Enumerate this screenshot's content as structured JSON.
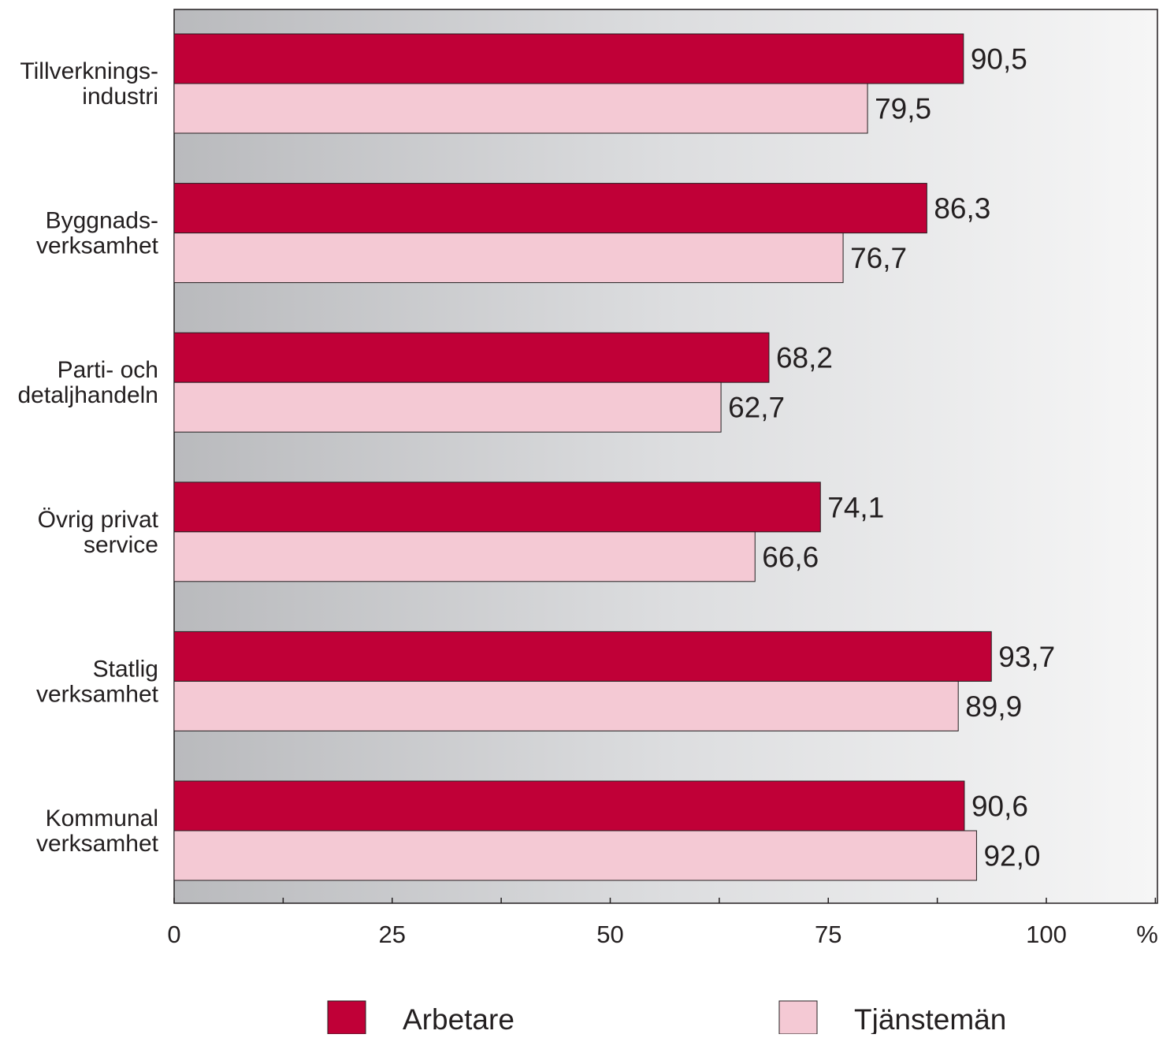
{
  "chart_data": {
    "type": "bar",
    "orientation": "horizontal",
    "title": "",
    "xlabel": "",
    "ylabel": "",
    "x_unit": "%",
    "xlim": [
      0,
      112
    ],
    "x_ticks": [
      0,
      25,
      50,
      75,
      100
    ],
    "x_tick_labels": [
      "0",
      "25",
      "50",
      "75",
      "100"
    ],
    "grid": false,
    "legend_position": "bottom",
    "categories": [
      [
        "Tillverknings-",
        "industri"
      ],
      [
        "Byggnads-",
        "verksamhet"
      ],
      [
        "Parti- och",
        "detaljhandeln"
      ],
      [
        "Övrig privat",
        "service"
      ],
      [
        "Statlig",
        "verksamhet"
      ],
      [
        "Kommunal",
        "verksamhet"
      ]
    ],
    "series": [
      {
        "name": "Arbetare",
        "color": "#c00037",
        "values": [
          90.5,
          86.3,
          68.2,
          74.1,
          93.7,
          90.6
        ],
        "labels": [
          "90,5",
          "86,3",
          "68,2",
          "74,1",
          "93,7",
          "90,6"
        ]
      },
      {
        "name": "Tjänstemän",
        "color": "#f4c9d4",
        "values": [
          79.5,
          76.7,
          62.7,
          66.6,
          89.9,
          92.0
        ],
        "labels": [
          "79,5",
          "76,7",
          "62,7",
          "66,6",
          "89,9",
          "92,0"
        ]
      }
    ]
  }
}
